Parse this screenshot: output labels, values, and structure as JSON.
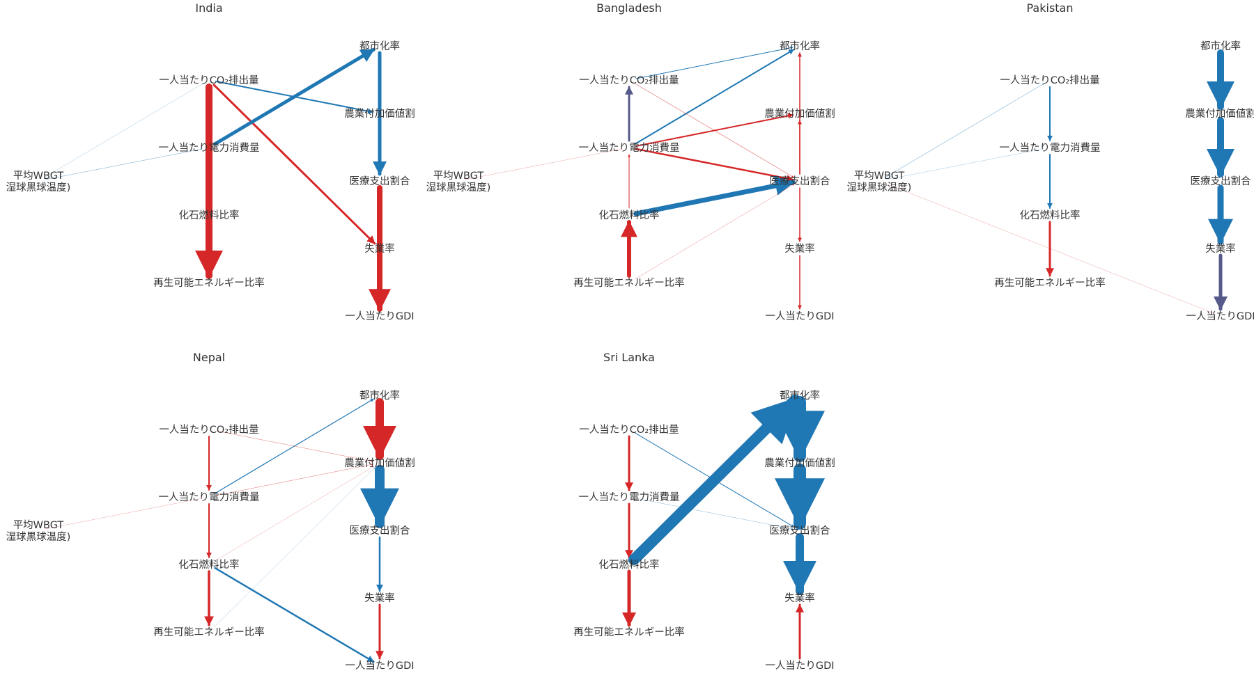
{
  "colors": {
    "positive": "#d62728",
    "negative": "#1f77b4",
    "mixed": "#555a8a",
    "text": "#333333"
  },
  "nodes": [
    {
      "id": "co2",
      "lines": [
        "一人当たりCO₂排出量"
      ]
    },
    {
      "id": "elec",
      "lines": [
        "一人当たり電力消費量"
      ]
    },
    {
      "id": "fos",
      "lines": [
        "化石燃料比率"
      ]
    },
    {
      "id": "ren",
      "lines": [
        "再生可能エネルギー比率"
      ]
    },
    {
      "id": "wbgt",
      "lines": [
        "平均WBGT",
        "湿球黒球温度)"
      ]
    },
    {
      "id": "urb",
      "lines": [
        "都市化率"
      ]
    },
    {
      "id": "agr",
      "lines": [
        "農業付加価値割"
      ]
    },
    {
      "id": "med",
      "lines": [
        "医療支出割合"
      ]
    },
    {
      "id": "unemp",
      "lines": [
        "失業率"
      ]
    },
    {
      "id": "gdp",
      "lines": [
        "一人当たりGDI"
      ]
    }
  ],
  "panels": [
    {
      "title": "India",
      "node_labels": {},
      "edges": [
        {
          "from": "co2",
          "to": "ren",
          "sign": "positive",
          "strength": 10
        },
        {
          "from": "co2",
          "to": "unemp",
          "sign": "positive",
          "strength": 3
        },
        {
          "from": "co2",
          "to": "agr",
          "sign": "negative",
          "strength": 2
        },
        {
          "from": "elec",
          "to": "urb",
          "sign": "negative",
          "strength": 5
        },
        {
          "from": "urb",
          "to": "med",
          "sign": "negative",
          "strength": 5
        },
        {
          "from": "med",
          "to": "gdp",
          "sign": "positive",
          "strength": 8
        },
        {
          "from": "wbgt",
          "to": "elec",
          "sign": "negative",
          "strength": 0.6
        },
        {
          "from": "wbgt",
          "to": "co2",
          "sign": "negative",
          "strength": 0.4
        }
      ]
    },
    {
      "title": "Bangladesh",
      "node_labels": {},
      "edges": [
        {
          "from": "elec",
          "to": "co2",
          "sign": "mixed",
          "strength": 3
        },
        {
          "from": "elec",
          "to": "urb",
          "sign": "negative",
          "strength": 2
        },
        {
          "from": "co2",
          "to": "urb",
          "sign": "negative",
          "strength": 1
        },
        {
          "from": "elec",
          "to": "agr",
          "sign": "positive",
          "strength": 2
        },
        {
          "from": "elec",
          "to": "med",
          "sign": "positive",
          "strength": 2.5
        },
        {
          "from": "co2",
          "to": "med",
          "sign": "positive",
          "strength": 0.8
        },
        {
          "from": "fos",
          "to": "elec",
          "sign": "positive",
          "strength": 1
        },
        {
          "from": "fos",
          "to": "med",
          "sign": "negative",
          "strength": 7
        },
        {
          "from": "ren",
          "to": "fos",
          "sign": "positive",
          "strength": 6
        },
        {
          "from": "ren",
          "to": "med",
          "sign": "positive",
          "strength": 0.5
        },
        {
          "from": "med",
          "to": "urb",
          "sign": "positive",
          "strength": 1.5
        },
        {
          "from": "med",
          "to": "agr",
          "sign": "positive",
          "strength": 1.5
        },
        {
          "from": "med",
          "to": "unemp",
          "sign": "positive",
          "strength": 1.5
        },
        {
          "from": "unemp",
          "to": "gdp",
          "sign": "positive",
          "strength": 1.5
        },
        {
          "from": "wbgt",
          "to": "elec",
          "sign": "positive",
          "strength": 0.4
        }
      ]
    },
    {
      "title": "Pakistan",
      "node_labels": {},
      "edges": [
        {
          "from": "co2",
          "to": "elec",
          "sign": "negative",
          "strength": 2
        },
        {
          "from": "elec",
          "to": "fos",
          "sign": "negative",
          "strength": 2
        },
        {
          "from": "fos",
          "to": "ren",
          "sign": "positive",
          "strength": 3
        },
        {
          "from": "wbgt",
          "to": "co2",
          "sign": "negative",
          "strength": 0.6
        },
        {
          "from": "wbgt",
          "to": "elec",
          "sign": "negative",
          "strength": 0.3
        },
        {
          "from": "wbgt",
          "to": "gdp",
          "sign": "positive",
          "strength": 0.3
        },
        {
          "from": "urb",
          "to": "agr",
          "sign": "negative",
          "strength": 10
        },
        {
          "from": "agr",
          "to": "med",
          "sign": "negative",
          "strength": 10
        },
        {
          "from": "med",
          "to": "unemp",
          "sign": "negative",
          "strength": 9
        },
        {
          "from": "unemp",
          "to": "gdp",
          "sign": "mixed",
          "strength": 5
        }
      ]
    },
    {
      "title": "Nepal",
      "node_labels": {},
      "edges": [
        {
          "from": "co2",
          "to": "elec",
          "sign": "positive",
          "strength": 2
        },
        {
          "from": "elec",
          "to": "fos",
          "sign": "positive",
          "strength": 2
        },
        {
          "from": "fos",
          "to": "ren",
          "sign": "positive",
          "strength": 3.5
        },
        {
          "from": "elec",
          "to": "urb",
          "sign": "negative",
          "strength": 1.2
        },
        {
          "from": "fos",
          "to": "gdp",
          "sign": "negative",
          "strength": 2.5
        },
        {
          "from": "co2",
          "to": "agr",
          "sign": "positive",
          "strength": 0.6
        },
        {
          "from": "elec",
          "to": "agr",
          "sign": "positive",
          "strength": 0.6
        },
        {
          "from": "fos",
          "to": "agr",
          "sign": "positive",
          "strength": 0.4
        },
        {
          "from": "ren",
          "to": "agr",
          "sign": "negative",
          "strength": 0.3
        },
        {
          "from": "wbgt",
          "to": "elec",
          "sign": "positive",
          "strength": 0.3
        },
        {
          "from": "urb",
          "to": "agr",
          "sign": "positive",
          "strength": 12
        },
        {
          "from": "agr",
          "to": "med",
          "sign": "negative",
          "strength": 14
        },
        {
          "from": "med",
          "to": "unemp",
          "sign": "negative",
          "strength": 2.5
        },
        {
          "from": "unemp",
          "to": "gdp",
          "sign": "positive",
          "strength": 3
        }
      ]
    },
    {
      "title": "Sri Lanka",
      "node_labels": {
        "wbgt": "hidden"
      },
      "edges": [
        {
          "from": "co2",
          "to": "elec",
          "sign": "positive",
          "strength": 3
        },
        {
          "from": "elec",
          "to": "fos",
          "sign": "positive",
          "strength": 3
        },
        {
          "from": "fos",
          "to": "ren",
          "sign": "positive",
          "strength": 5
        },
        {
          "from": "fos",
          "to": "urb",
          "sign": "negative",
          "strength": 16
        },
        {
          "from": "co2",
          "to": "med",
          "sign": "negative",
          "strength": 1
        },
        {
          "from": "elec",
          "to": "med",
          "sign": "negative",
          "strength": 0.5
        },
        {
          "from": "urb",
          "to": "agr",
          "sign": "negative",
          "strength": 18
        },
        {
          "from": "agr",
          "to": "med",
          "sign": "negative",
          "strength": 18
        },
        {
          "from": "med",
          "to": "unemp",
          "sign": "negative",
          "strength": 12
        },
        {
          "from": "gdp",
          "to": "unemp",
          "sign": "positive",
          "strength": 3
        }
      ]
    }
  ]
}
